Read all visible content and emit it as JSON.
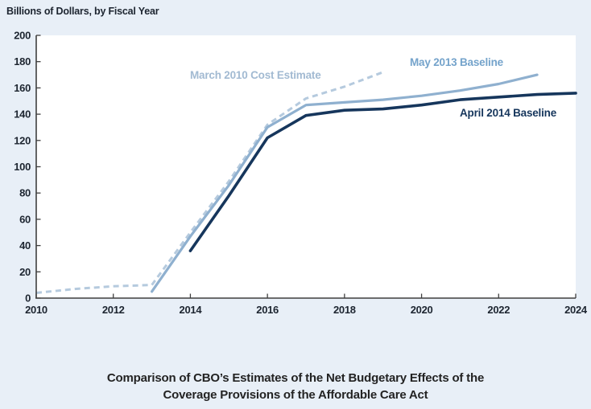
{
  "page": {
    "header": "Billions of Dollars, by Fiscal Year",
    "title_line1": "Comparison of CBO’s Estimates of the Net Budgetary Effects of the",
    "title_line2": "Coverage Provisions of the Affordable Care Act"
  },
  "colors": {
    "page_bg": "#e8eff7",
    "plot_bg": "#ffffff",
    "axis": "#3f3f3f",
    "text_dark": "#1d2530"
  },
  "chart_data": {
    "type": "line",
    "title": "Comparison of CBO’s Estimates of the Net Budgetary Effects of the Coverage Provisions of the Affordable Care Act",
    "xlabel": "Fiscal Year",
    "ylabel": "Billions of Dollars",
    "xlim": [
      2010,
      2024
    ],
    "ylim": [
      0,
      200
    ],
    "x_ticks": [
      2010,
      2012,
      2014,
      2016,
      2018,
      2020,
      2022,
      2024
    ],
    "y_ticks": [
      0,
      20,
      40,
      60,
      80,
      100,
      120,
      140,
      160,
      180,
      200
    ],
    "grid": false,
    "legend_position": "inline-annotations",
    "series": [
      {
        "name": "March 2010 Cost Estimate",
        "color": "#b5cade",
        "label_color": "#a2bad2",
        "dash": true,
        "points": [
          [
            2010,
            4
          ],
          [
            2011,
            7
          ],
          [
            2012,
            9
          ],
          [
            2013,
            10
          ],
          [
            2014,
            50
          ],
          [
            2015,
            89
          ],
          [
            2016,
            132
          ],
          [
            2017,
            152
          ],
          [
            2018,
            161
          ],
          [
            2019,
            172
          ]
        ]
      },
      {
        "name": "May 2013 Baseline",
        "color": "#8fb0cf",
        "label_color": "#74a3cb",
        "dash": false,
        "points": [
          [
            2013,
            5
          ],
          [
            2014,
            47
          ],
          [
            2015,
            86
          ],
          [
            2016,
            130
          ],
          [
            2017,
            147
          ],
          [
            2018,
            149
          ],
          [
            2019,
            151
          ],
          [
            2020,
            154
          ],
          [
            2021,
            158
          ],
          [
            2022,
            163
          ],
          [
            2023,
            170
          ]
        ]
      },
      {
        "name": "April 2014 Baseline",
        "color": "#16365c",
        "label_color": "#16365c",
        "dash": false,
        "points": [
          [
            2014,
            36
          ],
          [
            2015,
            78
          ],
          [
            2016,
            122
          ],
          [
            2017,
            139
          ],
          [
            2018,
            143
          ],
          [
            2019,
            144
          ],
          [
            2020,
            147
          ],
          [
            2021,
            151
          ],
          [
            2022,
            153
          ],
          [
            2023,
            155
          ],
          [
            2024,
            156
          ]
        ]
      }
    ]
  }
}
